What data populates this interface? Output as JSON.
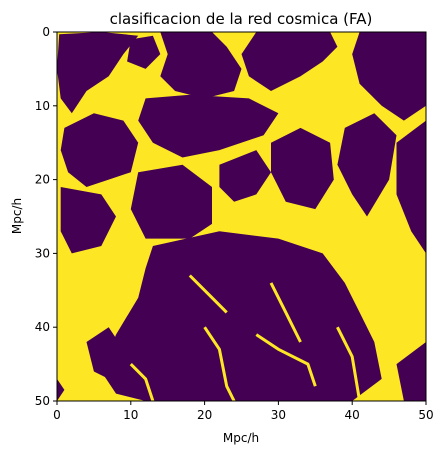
{
  "chart_data": {
    "type": "heatmap",
    "title": "clasificacion de la red cosmica (FA)",
    "xlabel": "Mpc/h",
    "ylabel": "Mpc/h",
    "xlim": [
      0,
      50
    ],
    "ylim": [
      50,
      0
    ],
    "x_ticks": [
      "0",
      "10",
      "20",
      "30",
      "40",
      "50"
    ],
    "y_ticks": [
      "0",
      "10",
      "20",
      "30",
      "40",
      "50"
    ],
    "colormap": "viridis (binary)",
    "colors": {
      "low": "#440154",
      "high": "#fde725"
    },
    "grid": false,
    "legend": "none"
  }
}
